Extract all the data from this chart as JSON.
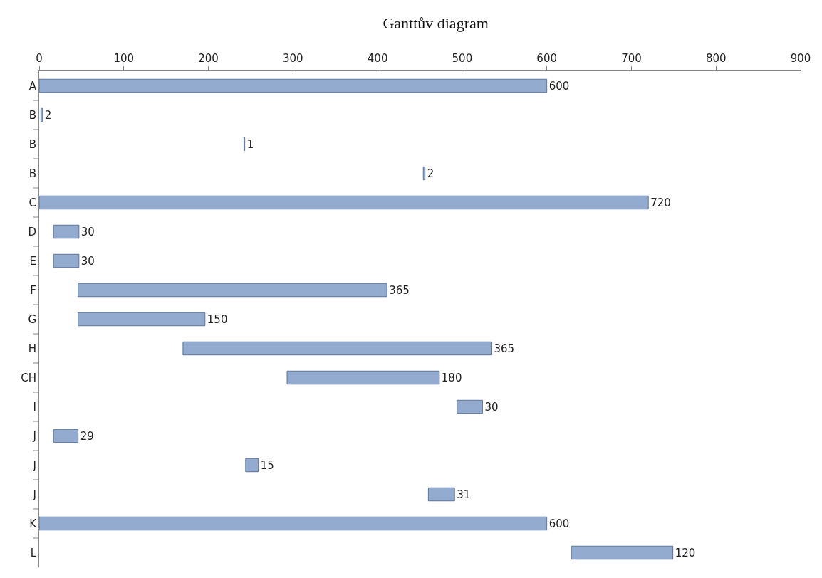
{
  "chart_data": {
    "type": "bar",
    "title": "Ganttův diagram",
    "orientation": "horizontal",
    "categories": [
      "A",
      "B",
      "B",
      "B",
      "C",
      "D",
      "E",
      "F",
      "G",
      "H",
      "CH",
      "I",
      "J",
      "J",
      "J",
      "K",
      "L"
    ],
    "base": [
      0,
      2,
      242,
      454,
      0,
      17,
      17,
      46,
      46,
      170,
      293,
      494,
      17,
      244,
      460,
      0,
      629
    ],
    "values": [
      600,
      2,
      1,
      2,
      720,
      30,
      30,
      365,
      150,
      365,
      180,
      30,
      29,
      15,
      31,
      600,
      120
    ],
    "color": "#93abcf",
    "data_labels": true,
    "grid": false,
    "xlim": [
      0,
      900
    ],
    "xticks": [
      0,
      100,
      200,
      300,
      400,
      500,
      600,
      700,
      800,
      900
    ]
  }
}
